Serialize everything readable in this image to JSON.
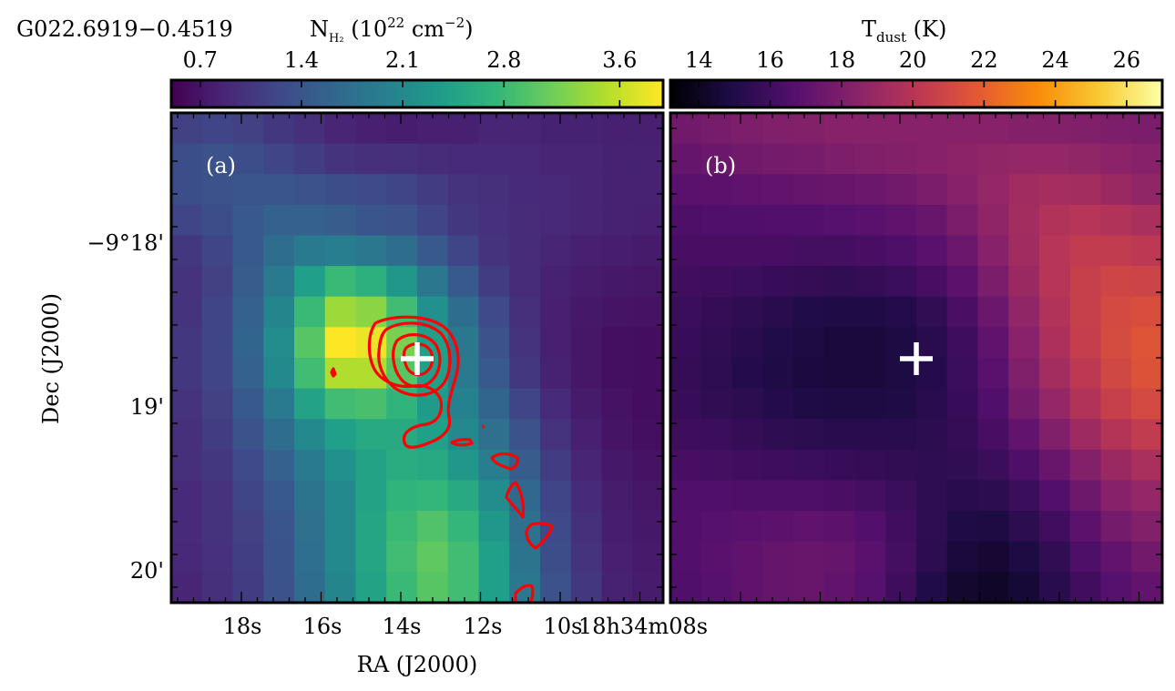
{
  "figure": {
    "source_name": "G022.6919−0.4519",
    "colorbar_nh2": {
      "label_main": "N",
      "label_sub": "H₂",
      "label_rest": " (10",
      "label_exp": "22",
      "label_unit": " cm",
      "label_unit_exp": "−2",
      "label_close": ")",
      "ticks": [
        "0.7",
        "1.4",
        "2.1",
        "2.8",
        "3.6"
      ],
      "range": [
        0.5,
        3.9
      ]
    },
    "colorbar_tdust": {
      "label_main": "T",
      "label_sub": "dust",
      "label_rest": " (K)",
      "ticks": [
        "14",
        "16",
        "18",
        "20",
        "22",
        "24",
        "26"
      ],
      "range": [
        13.2,
        27.0
      ]
    },
    "panel_a": {
      "tag": "(a)",
      "ylabel": "Dec (J2000)",
      "xlabel": "RA (J2000)",
      "yticks": [
        "−9°18'",
        "19'",
        "20'"
      ],
      "xticks": [
        "18s",
        "16s",
        "14s",
        "12s",
        "10s",
        "18h34m08s"
      ]
    },
    "panel_b": {
      "tag": "(b)"
    },
    "marker": {
      "symbol": "+",
      "color": "#ffffff"
    },
    "contour_color": "#ff0000"
  },
  "chart_data": [
    {
      "type": "heatmap",
      "name": "N_H2 column density map",
      "colormap": "viridis",
      "grid_cols": 16,
      "grid_rows": 16,
      "units": "10^22 cm^-2",
      "clim": [
        0.5,
        3.9
      ],
      "values": [
        [
          1.15,
          1.2,
          1.15,
          1.05,
          0.95,
          0.85,
          0.8,
          0.78,
          0.8,
          0.8,
          0.85,
          0.85,
          0.82,
          0.82,
          0.8,
          0.8
        ],
        [
          1.3,
          1.35,
          1.3,
          1.2,
          1.1,
          1.0,
          0.95,
          0.95,
          0.92,
          0.9,
          0.9,
          0.88,
          0.85,
          0.85,
          0.82,
          0.82
        ],
        [
          1.3,
          1.35,
          1.4,
          1.4,
          1.35,
          1.3,
          1.25,
          1.2,
          1.1,
          1.0,
          0.95,
          0.9,
          0.88,
          0.85,
          0.82,
          0.82
        ],
        [
          1.2,
          1.3,
          1.45,
          1.55,
          1.55,
          1.5,
          1.4,
          1.35,
          1.2,
          1.05,
          0.98,
          0.92,
          0.88,
          0.85,
          0.82,
          0.8
        ],
        [
          1.05,
          1.2,
          1.45,
          1.7,
          1.9,
          1.95,
          1.85,
          1.7,
          1.45,
          1.2,
          1.0,
          0.92,
          0.85,
          0.8,
          0.78,
          0.75
        ],
        [
          1.0,
          1.15,
          1.5,
          1.9,
          2.4,
          2.8,
          2.65,
          2.3,
          1.85,
          1.45,
          1.1,
          0.92,
          0.82,
          0.76,
          0.72,
          0.7
        ],
        [
          1.0,
          1.2,
          1.55,
          2.05,
          2.8,
          3.4,
          3.3,
          2.85,
          2.2,
          1.7,
          1.25,
          0.95,
          0.8,
          0.72,
          0.68,
          0.66
        ],
        [
          1.05,
          1.2,
          1.6,
          2.15,
          3.0,
          3.9,
          3.8,
          3.2,
          2.4,
          1.85,
          1.35,
          1.0,
          0.8,
          0.7,
          0.64,
          0.62
        ],
        [
          1.05,
          1.2,
          1.55,
          2.1,
          2.85,
          3.5,
          3.5,
          3.0,
          2.4,
          1.9,
          1.45,
          1.05,
          0.82,
          0.7,
          0.64,
          0.62
        ],
        [
          1.0,
          1.15,
          1.45,
          1.9,
          2.45,
          2.85,
          2.9,
          2.7,
          2.35,
          2.0,
          1.6,
          1.2,
          0.9,
          0.75,
          0.66,
          0.62
        ],
        [
          0.95,
          1.1,
          1.35,
          1.7,
          2.1,
          2.4,
          2.55,
          2.55,
          2.4,
          2.1,
          1.75,
          1.35,
          1.0,
          0.8,
          0.68,
          0.64
        ],
        [
          0.95,
          1.05,
          1.25,
          1.55,
          1.9,
          2.2,
          2.45,
          2.6,
          2.55,
          2.3,
          1.95,
          1.5,
          1.1,
          0.85,
          0.72,
          0.66
        ],
        [
          0.9,
          1.0,
          1.2,
          1.45,
          1.8,
          2.1,
          2.45,
          2.7,
          2.75,
          2.55,
          2.15,
          1.65,
          1.2,
          0.9,
          0.76,
          0.7
        ],
        [
          0.9,
          1.0,
          1.15,
          1.4,
          1.75,
          2.1,
          2.5,
          2.8,
          2.95,
          2.75,
          2.3,
          1.75,
          1.25,
          0.95,
          0.78,
          0.72
        ],
        [
          0.88,
          0.98,
          1.12,
          1.38,
          1.72,
          2.1,
          2.5,
          2.85,
          3.05,
          2.85,
          2.4,
          1.8,
          1.3,
          1.0,
          0.8,
          0.74
        ],
        [
          0.85,
          0.95,
          1.1,
          1.35,
          1.7,
          2.05,
          2.45,
          2.8,
          3.0,
          2.85,
          2.4,
          1.85,
          1.35,
          1.05,
          0.82,
          0.76
        ]
      ]
    },
    {
      "type": "heatmap",
      "name": "T_dust map",
      "colormap": "inferno",
      "grid_cols": 16,
      "grid_rows": 16,
      "units": "K",
      "clim": [
        13.2,
        27.0
      ],
      "values": [
        [
          17.6,
          17.8,
          18.0,
          18.1,
          18.2,
          18.3,
          18.3,
          18.3,
          18.3,
          18.3,
          18.3,
          18.2,
          18.2,
          18.1,
          18.0,
          17.9
        ],
        [
          17.2,
          17.4,
          17.6,
          17.7,
          17.8,
          18.0,
          18.1,
          18.2,
          18.3,
          18.5,
          18.7,
          18.8,
          18.8,
          18.7,
          18.5,
          18.3
        ],
        [
          16.8,
          16.9,
          17.0,
          17.1,
          17.2,
          17.3,
          17.4,
          17.6,
          17.9,
          18.3,
          18.8,
          19.2,
          19.4,
          19.3,
          19.0,
          18.7
        ],
        [
          16.4,
          16.5,
          16.5,
          16.6,
          16.6,
          16.7,
          16.8,
          17.0,
          17.3,
          17.9,
          18.6,
          19.3,
          19.8,
          20.0,
          19.8,
          19.5
        ],
        [
          16.2,
          16.2,
          16.2,
          16.2,
          16.1,
          16.1,
          16.2,
          16.4,
          16.8,
          17.4,
          18.3,
          19.2,
          20.0,
          20.4,
          20.4,
          20.2
        ],
        [
          16.0,
          15.9,
          15.8,
          15.7,
          15.6,
          15.5,
          15.6,
          15.8,
          16.2,
          16.9,
          17.9,
          19.0,
          20.0,
          20.6,
          20.9,
          20.8
        ],
        [
          15.8,
          15.6,
          15.4,
          15.2,
          15.0,
          14.9,
          14.9,
          15.1,
          15.5,
          16.3,
          17.4,
          18.7,
          19.8,
          20.6,
          21.1,
          21.3
        ],
        [
          15.7,
          15.5,
          15.2,
          15.0,
          14.8,
          14.6,
          14.6,
          14.8,
          15.2,
          15.9,
          17.0,
          18.4,
          19.6,
          20.5,
          21.2,
          21.6
        ],
        [
          15.6,
          15.4,
          15.1,
          14.9,
          14.7,
          14.6,
          14.6,
          14.8,
          15.1,
          15.8,
          16.8,
          18.1,
          19.3,
          20.2,
          21.0,
          21.5
        ],
        [
          15.7,
          15.5,
          15.3,
          15.1,
          14.9,
          14.8,
          14.8,
          14.9,
          15.2,
          15.7,
          16.5,
          17.7,
          18.8,
          19.8,
          20.6,
          21.1
        ],
        [
          15.9,
          15.8,
          15.6,
          15.4,
          15.3,
          15.2,
          15.2,
          15.2,
          15.3,
          15.6,
          16.2,
          17.1,
          18.1,
          19.1,
          19.9,
          20.4
        ],
        [
          16.2,
          16.1,
          16.0,
          15.9,
          15.8,
          15.7,
          15.6,
          15.5,
          15.4,
          15.5,
          15.8,
          16.4,
          17.3,
          18.2,
          19.0,
          19.5
        ],
        [
          16.5,
          16.5,
          16.4,
          16.4,
          16.4,
          16.3,
          16.1,
          15.8,
          15.4,
          15.2,
          15.3,
          15.8,
          16.6,
          17.5,
          18.3,
          18.8
        ],
        [
          16.6,
          16.7,
          16.8,
          16.9,
          17.0,
          16.9,
          16.6,
          16.0,
          15.4,
          14.9,
          14.8,
          15.3,
          16.0,
          16.9,
          17.7,
          18.2
        ],
        [
          16.6,
          16.8,
          17.0,
          17.2,
          17.3,
          17.2,
          16.8,
          16.1,
          15.3,
          14.6,
          14.4,
          14.8,
          15.5,
          16.4,
          17.1,
          17.6
        ],
        [
          16.5,
          16.7,
          17.0,
          17.2,
          17.3,
          17.1,
          16.7,
          15.9,
          15.0,
          14.3,
          14.1,
          14.5,
          15.2,
          16.0,
          16.7,
          17.1
        ]
      ]
    }
  ]
}
